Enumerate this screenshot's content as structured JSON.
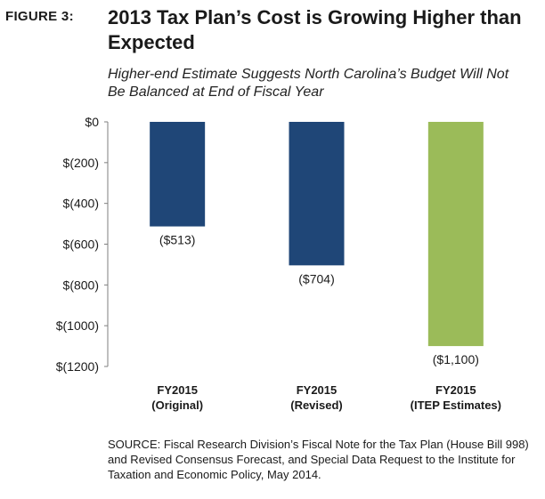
{
  "figure_label": "FIGURE 3:",
  "title": "2013 Tax Plan’s Cost is Growing Higher than Expected",
  "subtitle": "Higher-end Estimate Suggests North Carolina’s Budget Will Not Be Balanced at End of Fiscal Year",
  "source": "SOURCE: Fiscal Research Division’s Fiscal Note for the Tax Plan (House Bill 998) and Revised Consensus Forecast, and Special Data Request to the Institute for Taxation and Economic Policy, May 2014.",
  "colors": {
    "navy": "#1f4677",
    "green": "#9bbb59",
    "axis": "#7f7f7f"
  },
  "chart_data": {
    "type": "bar",
    "categories": [
      [
        "FY2015",
        "(Original)"
      ],
      [
        "FY2015",
        "(Revised)"
      ],
      [
        "FY2015",
        "(ITEP Estimates)"
      ]
    ],
    "values": [
      -513,
      -704,
      -1100
    ],
    "data_labels": [
      "($513)",
      "($704)",
      "($1,100)"
    ],
    "bar_colors": [
      "#1f4677",
      "#1f4677",
      "#9bbb59"
    ],
    "ylim": [
      -1200,
      0
    ],
    "yticks": [
      0,
      -200,
      -400,
      -600,
      -800,
      -1000,
      -1200
    ],
    "ytick_labels": [
      "$0",
      "$(200)",
      "$(400)",
      "$(600)",
      "$(800)",
      "$(1000)",
      "$(1200)"
    ],
    "xlabel": "",
    "ylabel": "",
    "grid": false,
    "legend": "none"
  }
}
